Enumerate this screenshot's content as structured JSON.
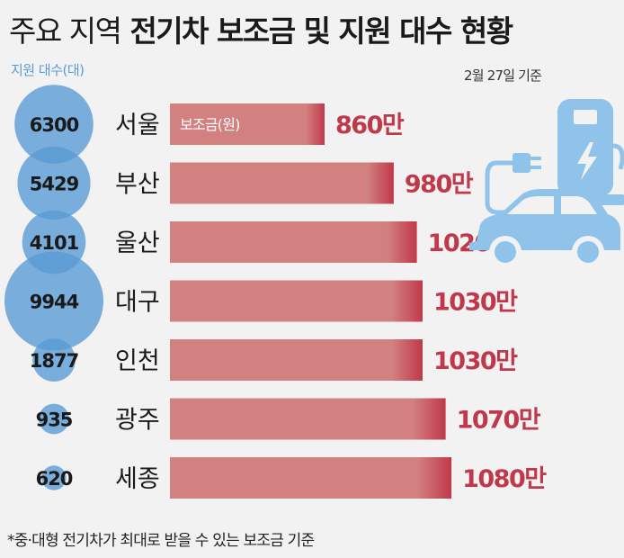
{
  "title": {
    "light": "주요 지역",
    "bold": "전기차 보조금 및 지원 대수 현황"
  },
  "legend_count_label": "지원 대수(대)",
  "date_note": "2월 27일 기준",
  "bar_legend_label": "보조금(원)",
  "footnote": "*중·대형 전기차가 최대로 받을 수 있는 보조금 기준",
  "icon": "ev-charging-car-icon",
  "colors": {
    "bubble": "#5a9bd4",
    "bar_start": "#d28080",
    "bar_end": "#c0394b",
    "value_text": "#c0394b",
    "icon": "#8fc3ea"
  },
  "chart_data": {
    "type": "bar",
    "orientation": "horizontal",
    "categories": [
      "서울",
      "부산",
      "울산",
      "대구",
      "인천",
      "광주",
      "세종"
    ],
    "series": [
      {
        "name": "보조금(원)",
        "values": [
          860,
          980,
          1020,
          1030,
          1030,
          1070,
          1080
        ],
        "labels": [
          "860만",
          "980만",
          "1020만",
          "1030만",
          "1030만",
          "1070만",
          "1080만"
        ]
      },
      {
        "name": "지원 대수(대)",
        "values": [
          6300,
          5429,
          4101,
          9944,
          1877,
          935,
          620
        ],
        "labels": [
          "6300",
          "5429",
          "4101",
          "9944",
          "1877",
          "935",
          "620"
        ]
      }
    ]
  }
}
